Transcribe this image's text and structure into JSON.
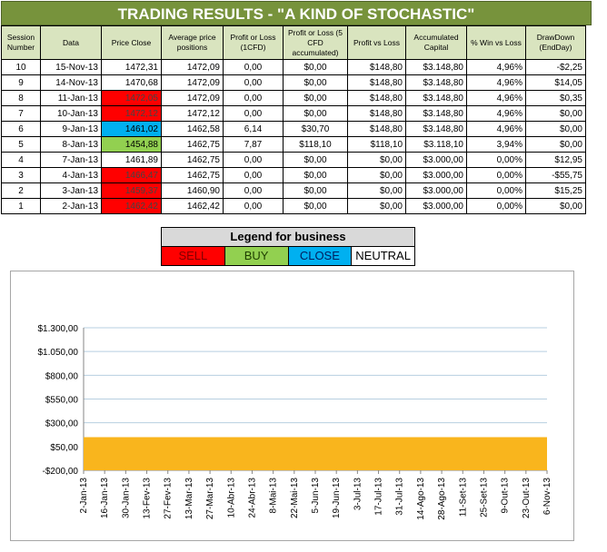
{
  "title": "TRADING RESULTS - \"A KIND OF STOCHASTIC\"",
  "table": {
    "headers": [
      "Session Number",
      "Data",
      "Price Close",
      "Average price positions",
      "Profit or Loss (1CFD)",
      "Profit or Loss (5 CFD accumulated)",
      "Profit vs Loss",
      "Accumulated Capital",
      "% Win vs Loss",
      "DrawDown (EndDay)"
    ],
    "rows": [
      {
        "session": "10",
        "date": "15-Nov-13",
        "price": "1472,31",
        "status": "neutral",
        "avg": "1472,09",
        "pl1": "0,00",
        "pl5": "$0,00",
        "pvl": "$148,80",
        "cap": "$3.148,80",
        "win": "4,96%",
        "dd": "-$2,25"
      },
      {
        "session": "9",
        "date": "14-Nov-13",
        "price": "1470,68",
        "status": "neutral",
        "avg": "1472,09",
        "pl1": "0,00",
        "pl5": "$0,00",
        "pvl": "$148,80",
        "cap": "$3.148,80",
        "win": "4,96%",
        "dd": "$14,05"
      },
      {
        "session": "8",
        "date": "11-Jan-13",
        "price": "1472,05",
        "status": "sell",
        "avg": "1472,09",
        "pl1": "0,00",
        "pl5": "$0,00",
        "pvl": "$148,80",
        "cap": "$3.148,80",
        "win": "4,96%",
        "dd": "$0,35"
      },
      {
        "session": "7",
        "date": "10-Jan-13",
        "price": "1472,12",
        "status": "sell",
        "avg": "1472,12",
        "pl1": "0,00",
        "pl5": "$0,00",
        "pvl": "$148,80",
        "cap": "$3.148,80",
        "win": "4,96%",
        "dd": "$0,00"
      },
      {
        "session": "6",
        "date": "9-Jan-13",
        "price": "1461,02",
        "status": "close",
        "avg": "1462,58",
        "pl1": "6,14",
        "pl5": "$30,70",
        "pvl": "$148,80",
        "cap": "$3.148,80",
        "win": "4,96%",
        "dd": "$0,00"
      },
      {
        "session": "5",
        "date": "8-Jan-13",
        "price": "1454,88",
        "status": "buy",
        "avg": "1462,75",
        "pl1": "7,87",
        "pl5": "$118,10",
        "pvl": "$118,10",
        "cap": "$3.118,10",
        "win": "3,94%",
        "dd": "$0,00"
      },
      {
        "session": "4",
        "date": "7-Jan-13",
        "price": "1461,89",
        "status": "neutral",
        "avg": "1462,75",
        "pl1": "0,00",
        "pl5": "$0,00",
        "pvl": "$0,00",
        "cap": "$3.000,00",
        "win": "0,00%",
        "dd": "$12,95"
      },
      {
        "session": "3",
        "date": "4-Jan-13",
        "price": "1466,47",
        "status": "sell",
        "avg": "1462,75",
        "pl1": "0,00",
        "pl5": "$0,00",
        "pvl": "$0,00",
        "cap": "$3.000,00",
        "win": "0,00%",
        "dd": "-$55,75"
      },
      {
        "session": "2",
        "date": "3-Jan-13",
        "price": "1459,37",
        "status": "sell",
        "avg": "1460,90",
        "pl1": "0,00",
        "pl5": "$0,00",
        "pvl": "$0,00",
        "cap": "$3.000,00",
        "win": "0,00%",
        "dd": "$15,25"
      },
      {
        "session": "1",
        "date": "2-Jan-13",
        "price": "1462,42",
        "status": "sell",
        "avg": "1462,42",
        "pl1": "0,00",
        "pl5": "$0,00",
        "pvl": "$0,00",
        "cap": "$3.000,00",
        "win": "0,00%",
        "dd": "$0,00"
      }
    ]
  },
  "legend": {
    "title": "Legend for business",
    "sell": "SELL",
    "buy": "BUY",
    "close": "CLOSE",
    "neutral": "NEUTRAL"
  },
  "colors": {
    "sell": "#ff0000",
    "buy": "#92d050",
    "close": "#00b0f0",
    "header_bg": "#77933c",
    "area_fill": "#f9b51d",
    "gridline": "#b7cfe0"
  },
  "chart_data": {
    "type": "area",
    "title": "",
    "xlabel": "",
    "ylabel": "",
    "ylim": [
      -200,
      1300
    ],
    "y_ticks": [
      "-$200,00",
      "$50,00",
      "$300,00",
      "$550,00",
      "$800,00",
      "$1.050,00",
      "$1.300,00"
    ],
    "y_tick_values": [
      -200,
      50,
      300,
      550,
      800,
      1050,
      1300
    ],
    "x": [
      "2-Jan-13",
      "16-Jan-13",
      "30-Jan-13",
      "13-Fev-13",
      "27-Fev-13",
      "13-Mar-13",
      "27-Mar-13",
      "10-Abr-13",
      "24-Abr-13",
      "8-Mai-13",
      "22-Mai-13",
      "5-Jun-13",
      "19-Jun-13",
      "3-Jul-13",
      "17-Jul-13",
      "31-Jul-13",
      "14-Ago-13",
      "28-Ago-13",
      "11-Set-13",
      "25-Set-13",
      "9-Out-13",
      "23-Out-13",
      "6-Nov-13"
    ],
    "series": [
      {
        "values": [
          148.8,
          148.8,
          148.8,
          148.8,
          148.8,
          148.8,
          148.8,
          148.8,
          148.8,
          148.8,
          148.8,
          148.8,
          148.8,
          148.8,
          148.8,
          148.8,
          148.8,
          148.8,
          148.8,
          148.8,
          148.8,
          148.8,
          148.8
        ]
      }
    ],
    "grid": true
  }
}
